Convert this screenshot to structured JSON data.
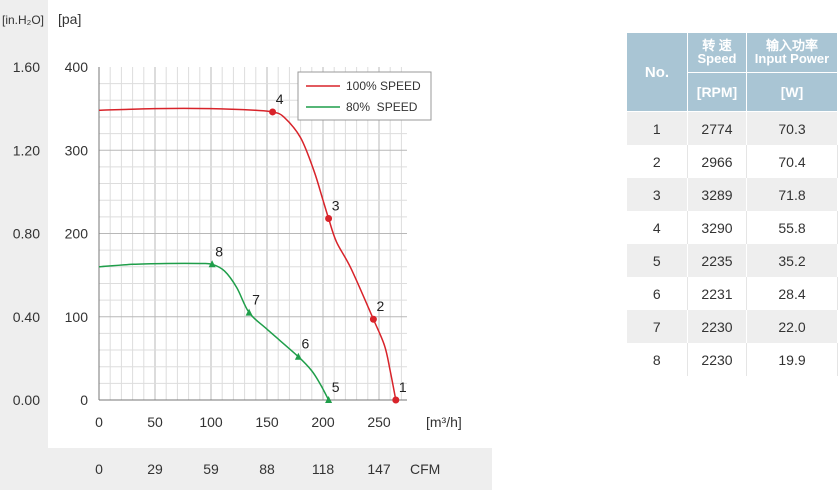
{
  "chart_data": {
    "type": "line",
    "y_left_unit": "[in.H₂O]",
    "y_unit": "[pa]",
    "x_unit": "[m³/h]",
    "x2_unit": "CFM",
    "xlim": [
      0,
      275
    ],
    "ylim": [
      0,
      400
    ],
    "x_ticks": [
      "0",
      "50",
      "100",
      "150",
      "200",
      "250"
    ],
    "y_ticks": [
      "0",
      "100",
      "200",
      "300",
      "400"
    ],
    "y_left_ticks": [
      "0.00",
      "0.40",
      "0.80",
      "1.20",
      "1.60"
    ],
    "x2_ticks": [
      "0",
      "29",
      "59",
      "88",
      "118",
      "147"
    ],
    "grid": true,
    "legend_position": "top-right",
    "series": [
      {
        "name": "100% SPEED",
        "color": "#d8232a",
        "curve": [
          [
            0,
            348
          ],
          [
            50,
            350
          ],
          [
            100,
            350
          ],
          [
            140,
            348
          ],
          [
            155,
            346
          ],
          [
            165,
            340
          ],
          [
            180,
            315
          ],
          [
            192,
            275
          ],
          [
            200,
            240
          ],
          [
            205,
            218
          ],
          [
            212,
            190
          ],
          [
            225,
            158
          ],
          [
            245,
            97
          ],
          [
            255,
            65
          ],
          [
            260,
            35
          ],
          [
            265,
            0
          ]
        ],
        "points": [
          {
            "label": "1",
            "x": 265,
            "y": 0
          },
          {
            "label": "2",
            "x": 245,
            "y": 97
          },
          {
            "label": "3",
            "x": 205,
            "y": 218
          },
          {
            "label": "4",
            "x": 155,
            "y": 346
          }
        ]
      },
      {
        "name": "80%  SPEED",
        "color": "#1f9e4a",
        "curve": [
          [
            0,
            160
          ],
          [
            30,
            163
          ],
          [
            60,
            164
          ],
          [
            90,
            164
          ],
          [
            101,
            163
          ],
          [
            112,
            155
          ],
          [
            123,
            135
          ],
          [
            134,
            105
          ],
          [
            150,
            85
          ],
          [
            178,
            52
          ],
          [
            190,
            35
          ],
          [
            198,
            18
          ],
          [
            205,
            0
          ]
        ],
        "points": [
          {
            "label": "5",
            "x": 205,
            "y": 0
          },
          {
            "label": "6",
            "x": 178,
            "y": 52
          },
          {
            "label": "7",
            "x": 134,
            "y": 105
          },
          {
            "label": "8",
            "x": 101,
            "y": 163
          }
        ]
      }
    ]
  },
  "table": {
    "header_no": "No.",
    "header_speed_cn": "转 速",
    "header_speed_en": "Speed",
    "header_power_cn": "输入功率",
    "header_power_en": "Input Power",
    "unit_speed": "[RPM]",
    "unit_power": "[W]",
    "rows": [
      {
        "no": "1",
        "speed": "2774",
        "power": "70.3"
      },
      {
        "no": "2",
        "speed": "2966",
        "power": "70.4"
      },
      {
        "no": "3",
        "speed": "3289",
        "power": "71.8"
      },
      {
        "no": "4",
        "speed": "3290",
        "power": "55.8"
      },
      {
        "no": "5",
        "speed": "2235",
        "power": "35.2"
      },
      {
        "no": "6",
        "speed": "2231",
        "power": "28.4"
      },
      {
        "no": "7",
        "speed": "2230",
        "power": "22.0"
      },
      {
        "no": "8",
        "speed": "2230",
        "power": "19.9"
      }
    ]
  }
}
